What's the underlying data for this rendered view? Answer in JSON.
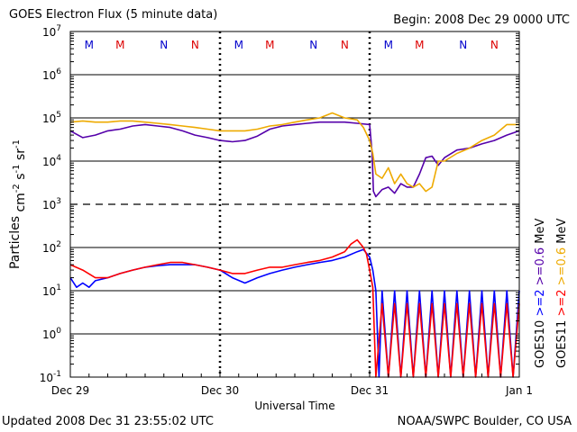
{
  "header": {
    "title": "GOES Electron Flux (5 minute data)",
    "begin": "Begin: 2008 Dec 29 0000 UTC"
  },
  "footer": {
    "updated": "Updated 2008 Dec 31 23:55:02 UTC",
    "source": "NOAA/SWPC Boulder, CO USA"
  },
  "colors": {
    "goes10_gt2": "#0000ff",
    "goes10_gt06": "#5500aa",
    "goes11_gt2": "#ff0000",
    "goes11_gt06": "#eeaa00",
    "eclipse_m_goes10": "#0000cc",
    "eclipse_m_goes11": "#dd0000"
  },
  "chart_data": {
    "type": "line",
    "title": "GOES Electron Flux (5 minute data)",
    "xlabel": "Universal Time",
    "ylabel": "Particles cm^-2 s^-1 sr^-1",
    "yscale": "log",
    "ylim": [
      0.1,
      10000000
    ],
    "xlim": [
      0,
      72
    ],
    "x_unit": "hours since 2008 Dec 29 0000 UTC",
    "x_ticks": [
      {
        "value": 0,
        "label": "Dec 29"
      },
      {
        "value": 24,
        "label": "Dec 30"
      },
      {
        "value": 48,
        "label": "Dec 31"
      },
      {
        "value": 72,
        "label": "Jan 1"
      }
    ],
    "y_ticks": [
      {
        "exp": -1,
        "base": "10",
        "sup": "-1"
      },
      {
        "exp": 0,
        "base": "10",
        "sup": "0"
      },
      {
        "exp": 1,
        "base": "10",
        "sup": "1"
      },
      {
        "exp": 2,
        "base": "10",
        "sup": "2"
      },
      {
        "exp": 3,
        "base": "10",
        "sup": "3"
      },
      {
        "exp": 4,
        "base": "10",
        "sup": "4"
      },
      {
        "exp": 5,
        "base": "10",
        "sup": "5"
      },
      {
        "exp": 6,
        "base": "10",
        "sup": "6"
      },
      {
        "exp": 7,
        "base": "10",
        "sup": "7"
      }
    ],
    "solid_gridlines": [
      0,
      1,
      2,
      4,
      5,
      6
    ],
    "dashed_gridlines": [
      3
    ],
    "day_dividers": [
      24,
      48
    ],
    "eclipse_markers": [
      {
        "hour": 3,
        "label": "M",
        "sat": "goes10"
      },
      {
        "hour": 8,
        "label": "M",
        "sat": "goes11"
      },
      {
        "hour": 15,
        "label": "N",
        "sat": "goes10"
      },
      {
        "hour": 20,
        "label": "N",
        "sat": "goes11"
      },
      {
        "hour": 27,
        "label": "M",
        "sat": "goes10"
      },
      {
        "hour": 32,
        "label": "M",
        "sat": "goes11"
      },
      {
        "hour": 39,
        "label": "N",
        "sat": "goes10"
      },
      {
        "hour": 44,
        "label": "N",
        "sat": "goes11"
      },
      {
        "hour": 51,
        "label": "M",
        "sat": "goes10"
      },
      {
        "hour": 56,
        "label": "M",
        "sat": "goes11"
      },
      {
        "hour": 63,
        "label": "N",
        "sat": "goes10"
      },
      {
        "hour": 68,
        "label": "N",
        "sat": "goes11"
      }
    ],
    "legend": [
      {
        "sat": "GOES10",
        "items": [
          {
            "text": ">=2",
            "color": "#0000ff"
          },
          {
            "text": ">=0.6",
            "color": "#5500aa"
          },
          {
            "text": "MeV",
            "color": "#000000"
          }
        ]
      },
      {
        "sat": "GOES11",
        "items": [
          {
            "text": ">=2",
            "color": "#ff0000"
          },
          {
            "text": ">=0.6",
            "color": "#eeaa00"
          },
          {
            "text": "MeV",
            "color": "#000000"
          }
        ]
      }
    ],
    "series": [
      {
        "name": "GOES10 >=0.6 MeV",
        "color": "#5500aa",
        "points": [
          [
            0,
            50000.0
          ],
          [
            2,
            35000.0
          ],
          [
            4,
            40000.0
          ],
          [
            6,
            50000.0
          ],
          [
            8,
            55000.0
          ],
          [
            10,
            65000.0
          ],
          [
            12,
            70000.0
          ],
          [
            14,
            65000.0
          ],
          [
            16,
            60000.0
          ],
          [
            18,
            50000.0
          ],
          [
            20,
            40000.0
          ],
          [
            22,
            35000.0
          ],
          [
            24,
            30000.0
          ],
          [
            26,
            28000.0
          ],
          [
            28,
            30000.0
          ],
          [
            30,
            38000.0
          ],
          [
            32,
            55000.0
          ],
          [
            34,
            65000.0
          ],
          [
            36,
            70000.0
          ],
          [
            38,
            75000.0
          ],
          [
            40,
            80000.0
          ],
          [
            42,
            80000.0
          ],
          [
            44,
            80000.0
          ],
          [
            46,
            75000.0
          ],
          [
            48,
            70000.0
          ],
          [
            48.4,
            15000.0
          ],
          [
            48.6,
            2000.0
          ],
          [
            49,
            1500.0
          ],
          [
            50,
            2200.0
          ],
          [
            51,
            2500.0
          ],
          [
            52,
            1800.0
          ],
          [
            53,
            3000.0
          ],
          [
            54,
            2500.0
          ],
          [
            55,
            2500.0
          ],
          [
            56,
            5000.0
          ],
          [
            57,
            12000.0
          ],
          [
            58,
            13000.0
          ],
          [
            59,
            8000.0
          ],
          [
            60,
            12000.0
          ],
          [
            62,
            18000.0
          ],
          [
            64,
            20000.0
          ],
          [
            66,
            25000.0
          ],
          [
            68,
            30000.0
          ],
          [
            70,
            40000.0
          ],
          [
            72,
            50000.0
          ]
        ]
      },
      {
        "name": "GOES11 >=0.6 MeV",
        "color": "#eeaa00",
        "points": [
          [
            0,
            80000.0
          ],
          [
            2,
            85000.0
          ],
          [
            4,
            80000.0
          ],
          [
            6,
            80000.0
          ],
          [
            8,
            85000.0
          ],
          [
            10,
            85000.0
          ],
          [
            12,
            80000.0
          ],
          [
            14,
            75000.0
          ],
          [
            16,
            70000.0
          ],
          [
            18,
            65000.0
          ],
          [
            20,
            60000.0
          ],
          [
            22,
            55000.0
          ],
          [
            24,
            50000.0
          ],
          [
            26,
            50000.0
          ],
          [
            28,
            50000.0
          ],
          [
            30,
            55000.0
          ],
          [
            32,
            65000.0
          ],
          [
            34,
            70000.0
          ],
          [
            36,
            80000.0
          ],
          [
            38,
            90000.0
          ],
          [
            40,
            100000.0
          ],
          [
            42,
            130000.0
          ],
          [
            44,
            100000.0
          ],
          [
            46,
            90000.0
          ],
          [
            47,
            60000.0
          ],
          [
            48,
            30000.0
          ],
          [
            48.5,
            15000.0
          ],
          [
            49,
            5000.0
          ],
          [
            50,
            4000.0
          ],
          [
            51,
            7000.0
          ],
          [
            52,
            3000.0
          ],
          [
            53,
            5000.0
          ],
          [
            54,
            3000.0
          ],
          [
            55,
            2500.0
          ],
          [
            56,
            3000.0
          ],
          [
            57,
            2000.0
          ],
          [
            58,
            2500.0
          ],
          [
            59,
            10000.0
          ],
          [
            60,
            10000.0
          ],
          [
            62,
            15000.0
          ],
          [
            64,
            20000.0
          ],
          [
            66,
            30000.0
          ],
          [
            68,
            40000.0
          ],
          [
            70,
            70000.0
          ],
          [
            72,
            70000.0
          ]
        ]
      },
      {
        "name": "GOES10 >=2 MeV",
        "color": "#0000ff",
        "points": [
          [
            0,
            20
          ],
          [
            1,
            12
          ],
          [
            2,
            15
          ],
          [
            3,
            12
          ],
          [
            4,
            17
          ],
          [
            6,
            20
          ],
          [
            8,
            25
          ],
          [
            10,
            30
          ],
          [
            12,
            35
          ],
          [
            14,
            38
          ],
          [
            16,
            40
          ],
          [
            18,
            40
          ],
          [
            20,
            40
          ],
          [
            22,
            35
          ],
          [
            24,
            30
          ],
          [
            26,
            20
          ],
          [
            28,
            15
          ],
          [
            30,
            20
          ],
          [
            32,
            25
          ],
          [
            34,
            30
          ],
          [
            36,
            35
          ],
          [
            38,
            40
          ],
          [
            40,
            45
          ],
          [
            42,
            50
          ],
          [
            44,
            60
          ],
          [
            46,
            80
          ],
          [
            47,
            90
          ],
          [
            48,
            60
          ],
          [
            48.5,
            30
          ],
          [
            49,
            10
          ],
          [
            49.5,
            0.1
          ],
          [
            50,
            10
          ],
          [
            51,
            0.1
          ],
          [
            52,
            10
          ],
          [
            53,
            0.1
          ],
          [
            54,
            10
          ],
          [
            55,
            0.1
          ],
          [
            56,
            10
          ],
          [
            57,
            0.1
          ],
          [
            58,
            10
          ],
          [
            59,
            0.1
          ],
          [
            60,
            10
          ],
          [
            61,
            0.1
          ],
          [
            62,
            10
          ],
          [
            63,
            0.1
          ],
          [
            64,
            10
          ],
          [
            65,
            0.1
          ],
          [
            66,
            10
          ],
          [
            67,
            0.1
          ],
          [
            68,
            10
          ],
          [
            69,
            0.1
          ],
          [
            70,
            10
          ],
          [
            71,
            0.1
          ],
          [
            72,
            10
          ]
        ]
      },
      {
        "name": "GOES11 >=2 MeV",
        "color": "#ff0000",
        "points": [
          [
            0,
            40
          ],
          [
            2,
            30
          ],
          [
            4,
            20
          ],
          [
            6,
            20
          ],
          [
            8,
            25
          ],
          [
            10,
            30
          ],
          [
            12,
            35
          ],
          [
            14,
            40
          ],
          [
            16,
            45
          ],
          [
            18,
            45
          ],
          [
            20,
            40
          ],
          [
            22,
            35
          ],
          [
            24,
            30
          ],
          [
            26,
            25
          ],
          [
            28,
            25
          ],
          [
            30,
            30
          ],
          [
            32,
            35
          ],
          [
            34,
            35
          ],
          [
            36,
            40
          ],
          [
            38,
            45
          ],
          [
            40,
            50
          ],
          [
            42,
            60
          ],
          [
            44,
            80
          ],
          [
            45,
            120
          ],
          [
            46,
            150
          ],
          [
            47,
            100
          ],
          [
            47.5,
            70
          ],
          [
            48,
            30
          ],
          [
            48.5,
            12
          ],
          [
            49,
            0.1
          ],
          [
            50,
            5
          ],
          [
            51,
            0.1
          ],
          [
            52,
            5
          ],
          [
            53,
            0.1
          ],
          [
            54,
            5
          ],
          [
            55,
            0.1
          ],
          [
            56,
            5
          ],
          [
            57,
            0.1
          ],
          [
            58,
            5
          ],
          [
            59,
            0.1
          ],
          [
            60,
            5
          ],
          [
            61,
            0.1
          ],
          [
            62,
            5
          ],
          [
            63,
            0.1
          ],
          [
            64,
            5
          ],
          [
            65,
            0.1
          ],
          [
            66,
            5
          ],
          [
            67,
            0.1
          ],
          [
            68,
            5
          ],
          [
            69,
            0.1
          ],
          [
            70,
            5
          ],
          [
            71,
            0.1
          ],
          [
            72,
            5
          ]
        ]
      }
    ]
  }
}
